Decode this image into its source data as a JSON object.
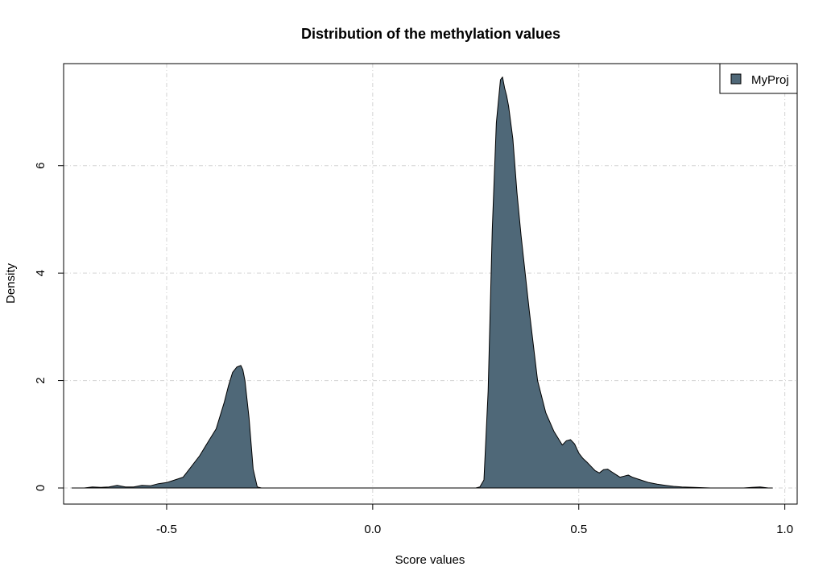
{
  "chart_data": {
    "type": "area",
    "title": "Distribution of the methylation values",
    "xlabel": "Score values",
    "ylabel": "Density",
    "xlim": [
      -0.75,
      1.03
    ],
    "ylim": [
      -0.3,
      7.9
    ],
    "xticks": [
      -0.5,
      0.0,
      0.5,
      1.0
    ],
    "xtick_labels": [
      "-0.5",
      "0.0",
      "0.5",
      "1.0"
    ],
    "yticks": [
      0,
      2,
      4,
      6
    ],
    "ytick_labels": [
      "0",
      "2",
      "4",
      "6"
    ],
    "grid": true,
    "legend": {
      "position": "top-right",
      "entries": [
        {
          "label": "MyProj",
          "color": "#4f6878"
        }
      ]
    },
    "series": [
      {
        "name": "MyProj",
        "color": "#4f6878",
        "x": [
          -0.73,
          -0.7,
          -0.68,
          -0.66,
          -0.64,
          -0.62,
          -0.6,
          -0.58,
          -0.56,
          -0.54,
          -0.52,
          -0.5,
          -0.48,
          -0.46,
          -0.44,
          -0.42,
          -0.4,
          -0.38,
          -0.36,
          -0.35,
          -0.34,
          -0.33,
          -0.32,
          -0.315,
          -0.31,
          -0.3,
          -0.29,
          -0.28,
          -0.27,
          -0.26,
          -0.25,
          0.0,
          0.25,
          0.26,
          0.27,
          0.28,
          0.29,
          0.3,
          0.31,
          0.315,
          0.32,
          0.325,
          0.33,
          0.34,
          0.35,
          0.36,
          0.38,
          0.4,
          0.42,
          0.44,
          0.46,
          0.47,
          0.48,
          0.49,
          0.5,
          0.51,
          0.52,
          0.53,
          0.54,
          0.55,
          0.56,
          0.57,
          0.58,
          0.59,
          0.6,
          0.61,
          0.62,
          0.63,
          0.65,
          0.67,
          0.69,
          0.71,
          0.73,
          0.75,
          0.78,
          0.82,
          0.86,
          0.9,
          0.92,
          0.94,
          0.96,
          0.97
        ],
        "values": [
          0.0,
          0.0,
          0.02,
          0.01,
          0.02,
          0.05,
          0.02,
          0.02,
          0.05,
          0.04,
          0.08,
          0.1,
          0.15,
          0.2,
          0.4,
          0.6,
          0.85,
          1.1,
          1.6,
          1.9,
          2.15,
          2.25,
          2.28,
          2.2,
          2.0,
          1.3,
          0.35,
          0.02,
          0.0,
          0.0,
          0.0,
          0.0,
          0.0,
          0.02,
          0.15,
          1.8,
          4.8,
          6.8,
          7.6,
          7.65,
          7.45,
          7.3,
          7.1,
          6.5,
          5.5,
          4.7,
          3.3,
          2.0,
          1.4,
          1.05,
          0.8,
          0.88,
          0.9,
          0.82,
          0.65,
          0.55,
          0.48,
          0.4,
          0.32,
          0.28,
          0.34,
          0.35,
          0.3,
          0.25,
          0.2,
          0.22,
          0.24,
          0.2,
          0.15,
          0.1,
          0.07,
          0.05,
          0.03,
          0.02,
          0.01,
          0.0,
          0.0,
          0.0,
          0.01,
          0.02,
          0.0,
          0.0
        ]
      }
    ]
  }
}
